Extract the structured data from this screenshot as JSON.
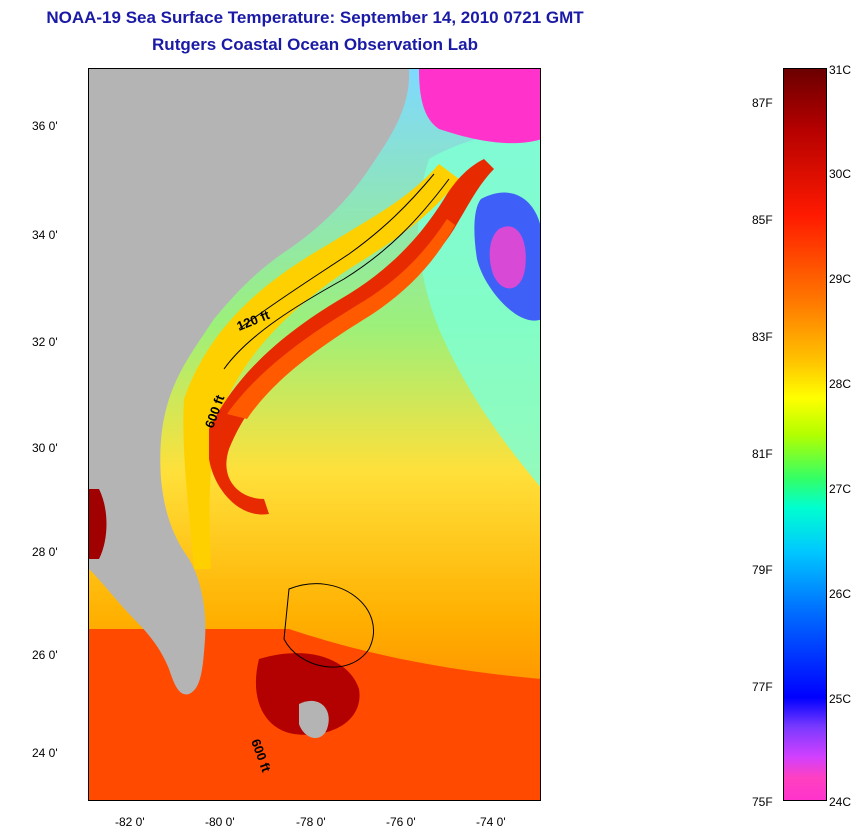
{
  "title": {
    "line1": "NOAA-19 Sea Surface Temperature:  September 14, 2010 0721 GMT",
    "line2": "Rutgers Coastal Ocean Observation Lab"
  },
  "map": {
    "lat_ticks": [
      "36 0'",
      "34 0'",
      "32 0'",
      "30 0'",
      "28 0'",
      "26 0'",
      "24 0'"
    ],
    "lon_ticks": [
      "-82 0'",
      "-80 0'",
      "-78 0'",
      "-76 0'",
      "-74 0'"
    ],
    "contour_labels": [
      "120 ft",
      "600 ft",
      "600 ft"
    ],
    "colors": {
      "land": "#b4b4b4",
      "gulf_stream": "#e82a00",
      "shelf": "#ffd000",
      "offshore": "#7fffd4"
    }
  },
  "colorbar": {
    "fahrenheit": [
      "87F",
      "85F",
      "83F",
      "81F",
      "79F",
      "77F",
      "75F"
    ],
    "celsius": [
      "31C",
      "30C",
      "29C",
      "28C",
      "27C",
      "26C",
      "25C",
      "24C"
    ]
  }
}
